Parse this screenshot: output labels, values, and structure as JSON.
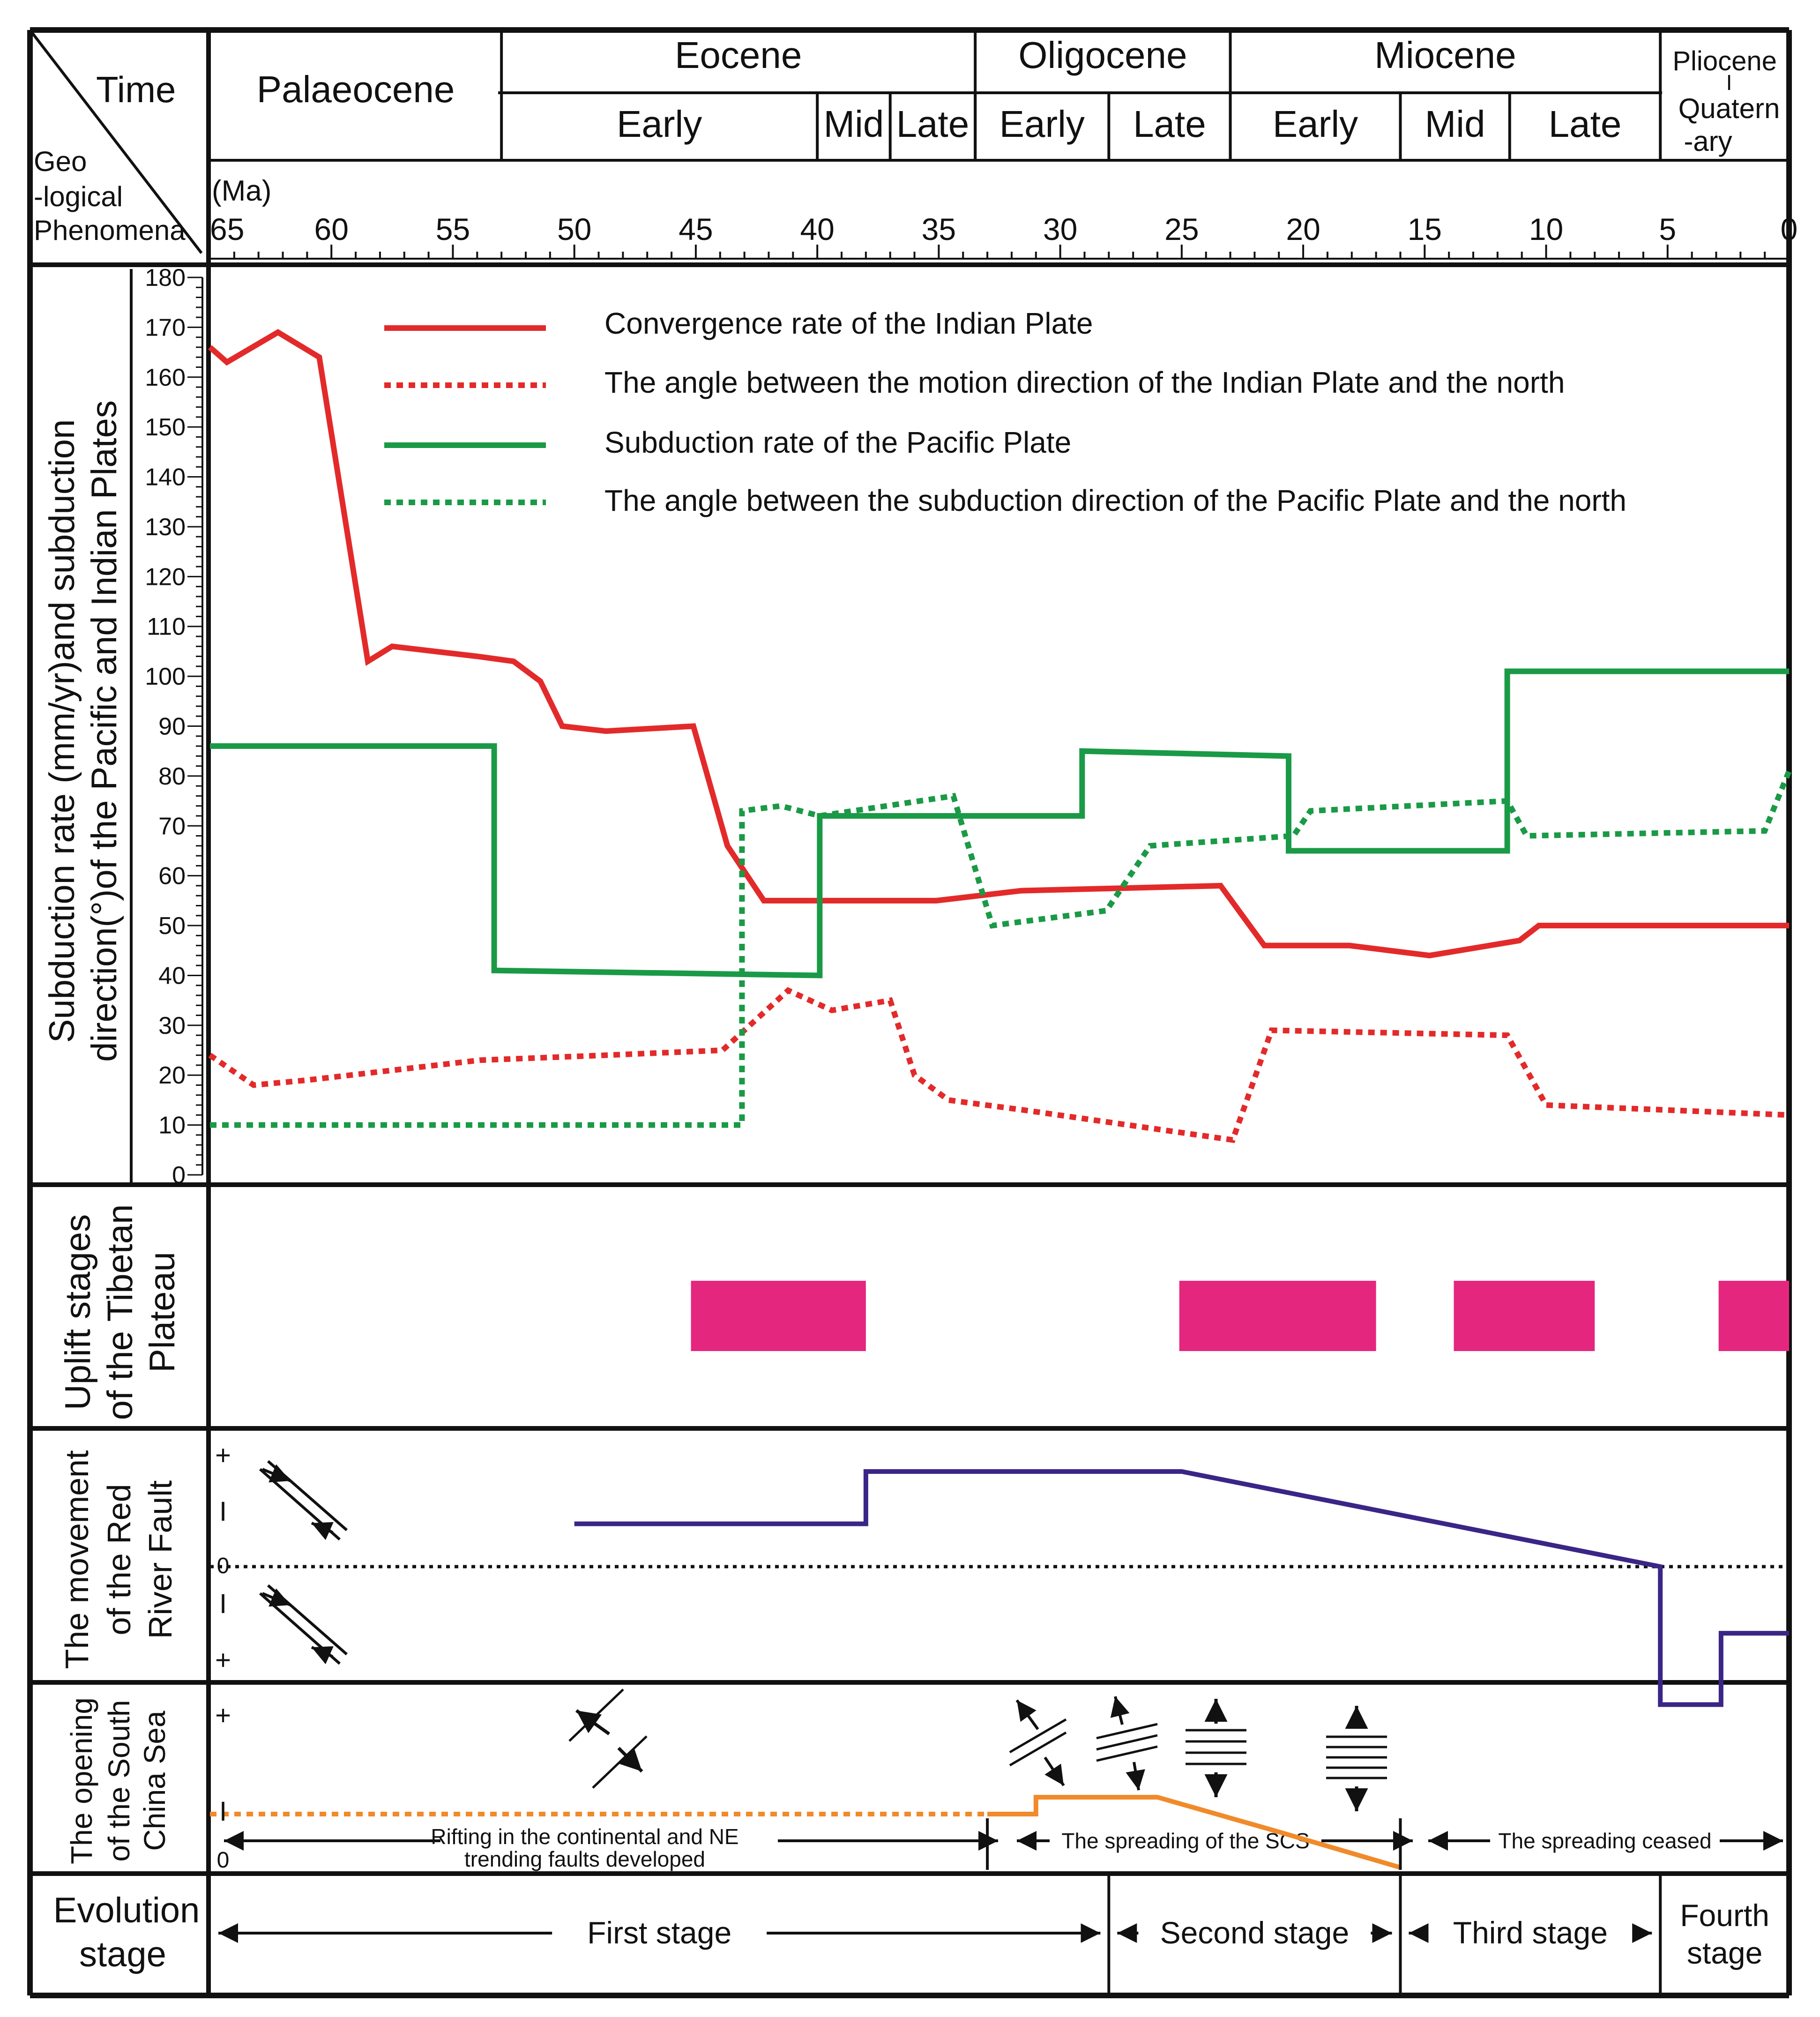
{
  "header": {
    "time_label": "Time",
    "geo_label": [
      "Geo",
      "-logical",
      "Phenomena"
    ],
    "epochs": [
      {
        "label": "Palaeocene",
        "from": 65,
        "to": 53
      },
      {
        "label": "Eocene",
        "from": 53,
        "to": 33.5
      },
      {
        "label": "Oligocene",
        "from": 33.5,
        "to": 23
      },
      {
        "label": "Miocene",
        "from": 23,
        "to": 5.3
      },
      {
        "label": "Pliocene",
        "from": 5.3,
        "to": 0
      }
    ],
    "quaternary_lines": [
      "I",
      "Quatern",
      "-ary"
    ],
    "subepochs": [
      {
        "label": "Early",
        "from": 53,
        "to": 40
      },
      {
        "label": "Mid",
        "from": 40,
        "to": 37
      },
      {
        "label": "Late",
        "from": 37,
        "to": 33.5
      },
      {
        "label": "Early",
        "from": 33.5,
        "to": 28
      },
      {
        "label": "Late",
        "from": 28,
        "to": 23
      },
      {
        "label": "Early",
        "from": 23,
        "to": 16
      },
      {
        "label": "Mid",
        "from": 16,
        "to": 11.5
      },
      {
        "label": "Late",
        "from": 11.5,
        "to": 5.3
      }
    ],
    "ma_unit": "(Ma)",
    "ma_ticks": [
      65,
      60,
      55,
      50,
      45,
      40,
      35,
      30,
      25,
      20,
      15,
      10,
      5,
      0
    ]
  },
  "rows": {
    "rates": [
      "Subduction rate  (mm/yr)and subduction",
      "direction(°)of the Pacific and Indian Plates"
    ],
    "uplift": [
      "Uplift stages",
      "of the Tibetan",
      "Plateau"
    ],
    "fault": [
      "The movement",
      "of the Red",
      "River Fault"
    ],
    "scs": [
      "The opening",
      "of the South",
      "China Sea"
    ],
    "evolution": [
      "Evolution",
      "stage"
    ]
  },
  "chart_data": {
    "type": "line",
    "x_unit": "Ma",
    "xlim": [
      65,
      0
    ],
    "ylim": [
      0,
      180
    ],
    "yticks": [
      0,
      10,
      20,
      30,
      40,
      50,
      60,
      70,
      80,
      90,
      100,
      110,
      120,
      130,
      140,
      150,
      160,
      170,
      180
    ],
    "legend": [
      {
        "label": "Convergence rate of the Indian Plate",
        "color": "#e32a2a",
        "dash": false
      },
      {
        "label": "The  angle  between  the motion direction of the Indian Plate and the north",
        "color": "#e32a2a",
        "dash": true
      },
      {
        "label": "Subduction rate of the Pacific Plate",
        "color": "#1a9a46",
        "dash": false
      },
      {
        "label": "The  angle  between  the subduction direction of the Pacific Plate and the north",
        "color": "#1a9a46",
        "dash": true
      }
    ],
    "series": [
      {
        "name": "Convergence rate of the Indian Plate",
        "color": "#e32a2a",
        "dash": false,
        "x": [
          65,
          64.3,
          62.2,
          60.5,
          58.5,
          57.5,
          54,
          52.5,
          51.4,
          50.5,
          48.7,
          45.1,
          43.7,
          42.2,
          35.1,
          31.6,
          23.4,
          21.6,
          18.1,
          14.8,
          11.1,
          10.3,
          0
        ],
        "y": [
          166,
          163,
          169,
          164,
          103,
          106,
          104,
          103,
          99,
          90,
          89,
          90,
          66,
          55,
          55,
          57,
          58,
          46,
          46,
          44,
          47,
          50,
          50
        ]
      },
      {
        "name": "The angle between the motion direction of the Indian Plate and the north",
        "color": "#e32a2a",
        "dash": true,
        "x": [
          65,
          63.2,
          61,
          53.9,
          48.7,
          43.9,
          42.1,
          41.2,
          39.4,
          37,
          36,
          34.6,
          31.5,
          22.9,
          21.3,
          11.6,
          10,
          0
        ],
        "y": [
          24,
          18,
          19,
          23,
          24,
          25,
          33,
          37,
          33,
          35,
          20,
          15,
          13,
          7,
          29,
          28,
          14,
          12
        ]
      },
      {
        "name": "Subduction rate of the Pacific Plate",
        "color": "#1a9a46",
        "dash": false,
        "x": [
          65,
          53.3,
          53.3,
          39.9,
          39.9,
          29.1,
          29.1,
          20.6,
          20.6,
          11.6,
          11.6,
          0
        ],
        "y": [
          86,
          86,
          41,
          40,
          72,
          72,
          85,
          84,
          65,
          65,
          101,
          101
        ]
      },
      {
        "name": "The angle between the subduction direction of the Pacific Plate and the north",
        "color": "#1a9a46",
        "dash": true,
        "x": [
          65,
          43.1,
          43.1,
          41.5,
          39.9,
          34.4,
          32.8,
          28.1,
          26.3,
          20.4,
          19.7,
          11.6,
          10.8,
          1,
          0
        ],
        "y": [
          10,
          10,
          73,
          74,
          72,
          76,
          50,
          53,
          66,
          68,
          73,
          75,
          68,
          69,
          81
        ]
      }
    ],
    "uplift_stages": [
      [
        45.2,
        38
      ],
      [
        25.1,
        17
      ],
      [
        13.8,
        8
      ],
      [
        2.9,
        0
      ]
    ],
    "red_river_fault": {
      "x": [
        50,
        38,
        38,
        25,
        5.3,
        5.3,
        2.8,
        2.8,
        0
      ],
      "y": [
        0.45,
        0.45,
        1,
        1,
        0,
        -1.45,
        -1.45,
        -0.7,
        -0.7
      ],
      "labels": [
        "+",
        "I",
        "0",
        "I",
        "+"
      ]
    },
    "scs_opening": {
      "dashed_x": [
        65,
        33
      ],
      "dashed_y": [
        0.57,
        0.57
      ],
      "solid_x": [
        33,
        31,
        31,
        26,
        21,
        16
      ],
      "solid_y": [
        0.57,
        0.57,
        0.75,
        0.75,
        0.38,
        0
      ],
      "labels": [
        "+",
        "I",
        "0"
      ],
      "text": [
        [
          "Rifting  in  the  continental  and  NE",
          "trending  faults  developed"
        ],
        [
          "The spreading of the SCS"
        ],
        [
          "The spreading ceased"
        ]
      ],
      "boundaries": [
        33,
        16,
        0
      ]
    },
    "evolution_stages": [
      {
        "label": "First stage",
        "from": 65,
        "to": 28
      },
      {
        "label": "Second stage",
        "from": 28,
        "to": 16
      },
      {
        "label": "Third stage",
        "from": 16,
        "to": 5.3
      },
      {
        "label": "Fourth",
        "label2": "stage",
        "from": 5.3,
        "to": 0
      }
    ]
  }
}
